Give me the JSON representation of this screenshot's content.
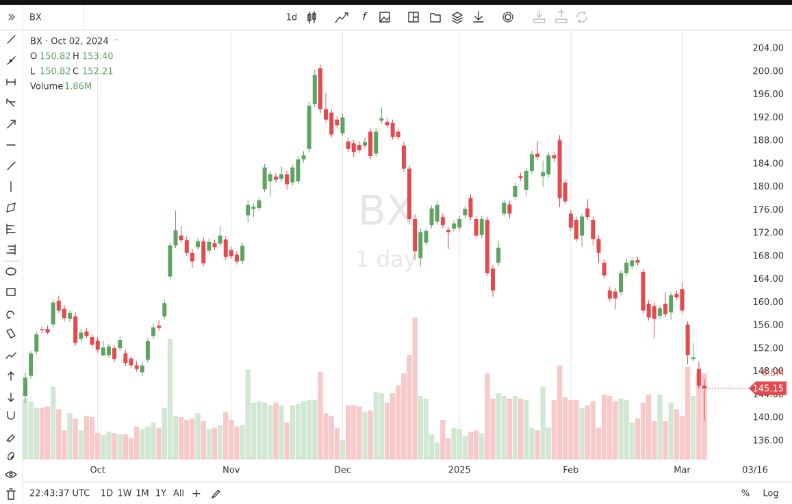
{
  "toolbar": {
    "symbol": "BX",
    "interval": "1d"
  },
  "bottom_bar": {
    "time": "22:43:37 UTC",
    "ranges": [
      "1D",
      "1W",
      "1M",
      "1Y",
      "All"
    ],
    "add": "+",
    "percent": "%",
    "log": "Log"
  },
  "cursor_date_label": "03/16",
  "legend": {
    "symbol": "BX · Oct 02, 2024",
    "o_label": "O",
    "o": "150.82",
    "h_label": "H",
    "h": "153.40",
    "l_label": "L",
    "l": "150.82",
    "c_label": "C",
    "c": "152.21",
    "volume_label": "Volume",
    "volume": "1.86M"
  },
  "watermark": {
    "symbol": "BX",
    "interval": "1 day"
  },
  "chart_data": {
    "type": "candlestick",
    "up_color": "#5ea362",
    "down_color": "#e5484d",
    "volume_up_color": "#d2e7d3",
    "volume_down_color": "#f8c9c9",
    "grid": {
      "x": true,
      "y": false
    },
    "ylim": [
      132.8,
      207.2
    ],
    "y2lim": [
      0,
      32.4
    ],
    "yticks": [
      {
        "value": 136,
        "label": "136.00"
      },
      {
        "value": 140,
        "label": "140.00"
      },
      {
        "value": 144,
        "label": "144.00"
      },
      {
        "value": 148,
        "label": "148.00"
      },
      {
        "value": 152,
        "label": "152.00"
      },
      {
        "value": 156,
        "label": "156.00"
      },
      {
        "value": 160,
        "label": "160.00"
      },
      {
        "value": 164,
        "label": "164.00"
      },
      {
        "value": 168,
        "label": "168.00"
      },
      {
        "value": 172,
        "label": "172.00"
      },
      {
        "value": 176,
        "label": "176.00"
      },
      {
        "value": 180,
        "label": "180.00"
      },
      {
        "value": 184,
        "label": "184.00"
      },
      {
        "value": 188,
        "label": "188.00"
      },
      {
        "value": 192,
        "label": "192.00"
      },
      {
        "value": 196,
        "label": "196.00"
      },
      {
        "value": 200,
        "label": "200.00"
      },
      {
        "value": 204,
        "label": "204.00"
      }
    ],
    "categories": [
      null,
      null,
      null,
      null,
      null,
      null,
      null,
      null,
      null,
      null,
      null,
      null,
      null,
      "Oct",
      null,
      null,
      null,
      null,
      null,
      null,
      null,
      null,
      null,
      null,
      null,
      null,
      null,
      null,
      null,
      null,
      null,
      null,
      null,
      null,
      null,
      null,
      null,
      "Nov",
      null,
      null,
      null,
      null,
      null,
      null,
      null,
      null,
      null,
      null,
      null,
      null,
      null,
      null,
      null,
      null,
      null,
      null,
      null,
      "Dec",
      null,
      null,
      null,
      null,
      null,
      null,
      null,
      null,
      null,
      null,
      null,
      null,
      null,
      null,
      null,
      null,
      null,
      null,
      null,
      null,
      "2025",
      null,
      null,
      null,
      null,
      null,
      null,
      null,
      null,
      null,
      null,
      null,
      null,
      null,
      null,
      null,
      null,
      null,
      null,
      null,
      "Feb",
      null,
      null,
      null,
      null,
      null,
      null,
      null,
      null,
      null,
      null,
      null,
      null,
      null,
      null,
      null,
      null,
      null,
      null,
      null,
      "Mar",
      null,
      null,
      null,
      null
    ],
    "annotations": {
      "volume_last": "6.5M"
    },
    "series": [
      {
        "name": "BX",
        "values": [
          [
            143.8,
            147.9,
            142.5,
            147.0
          ],
          [
            147.3,
            151.6,
            146.8,
            151.2
          ],
          [
            151.5,
            155.0,
            151.0,
            154.5
          ],
          [
            155.4,
            155.9,
            154.6,
            155.2
          ],
          [
            155.4,
            156.0,
            154.5,
            154.8
          ],
          [
            156.2,
            160.6,
            155.7,
            160.0
          ],
          [
            160.3,
            161.2,
            158.2,
            158.6
          ],
          [
            158.9,
            159.6,
            156.8,
            157.3
          ],
          [
            157.2,
            158.7,
            156.6,
            158.2
          ],
          [
            157.6,
            158.3,
            152.5,
            153.0
          ],
          [
            153.7,
            155.4,
            153.2,
            154.8
          ],
          [
            155.0,
            155.6,
            153.8,
            154.2
          ],
          [
            154.0,
            154.5,
            152.2,
            152.7
          ],
          [
            153.4,
            154.0,
            151.3,
            151.8
          ],
          [
            150.82,
            153.4,
            150.82,
            152.21
          ],
          [
            150.9,
            152.9,
            150.4,
            152.4
          ],
          [
            152.1,
            152.6,
            149.7,
            150.2
          ],
          [
            152.1,
            154.1,
            151.6,
            153.5
          ],
          [
            151.2,
            151.8,
            149.0,
            149.5
          ],
          [
            150.3,
            150.8,
            148.6,
            149.1
          ],
          [
            149.1,
            149.9,
            148.0,
            148.5
          ],
          [
            147.9,
            149.7,
            147.2,
            149.1
          ],
          [
            150.1,
            153.8,
            149.6,
            153.3
          ],
          [
            154.2,
            156.3,
            153.7,
            155.7
          ],
          [
            156.0,
            156.9,
            155.1,
            155.6
          ],
          [
            157.6,
            160.5,
            157.1,
            159.9
          ],
          [
            164.5,
            170.4,
            164.0,
            169.9
          ],
          [
            169.9,
            175.9,
            169.4,
            172.5
          ],
          [
            171.6,
            173.2,
            170.3,
            170.8
          ],
          [
            170.8,
            171.5,
            168.1,
            168.6
          ],
          [
            168.6,
            169.3,
            166.0,
            167.1
          ],
          [
            169.6,
            171.2,
            169.1,
            170.6
          ],
          [
            170.6,
            171.3,
            166.3,
            166.8
          ],
          [
            169.0,
            171.1,
            168.5,
            170.5
          ],
          [
            170.3,
            170.9,
            169.1,
            169.6
          ],
          [
            170.2,
            173.2,
            169.7,
            171.6
          ],
          [
            170.9,
            171.5,
            167.4,
            167.9
          ],
          [
            169.1,
            169.7,
            167.5,
            168.0
          ],
          [
            168.3,
            168.9,
            166.6,
            167.1
          ],
          [
            167.2,
            170.4,
            166.7,
            169.8
          ],
          [
            175.1,
            177.8,
            173.9,
            176.9
          ],
          [
            176.2,
            177.2,
            174.8,
            176.6
          ],
          [
            176.4,
            178.3,
            175.9,
            177.7
          ],
          [
            179.6,
            184.0,
            179.1,
            183.4
          ],
          [
            181.0,
            182.8,
            178.3,
            182.2
          ],
          [
            181.8,
            182.4,
            180.8,
            181.3
          ],
          [
            181.4,
            183.6,
            180.9,
            182.2
          ],
          [
            182.2,
            182.8,
            179.5,
            180.5
          ],
          [
            180.8,
            183.9,
            180.3,
            183.4
          ],
          [
            181.0,
            185.4,
            180.5,
            184.8
          ],
          [
            184.8,
            186.2,
            184.3,
            185.5
          ],
          [
            186.6,
            194.8,
            186.1,
            194.1
          ],
          [
            194.4,
            200.4,
            193.9,
            199.4
          ],
          [
            200.6,
            201.2,
            192.8,
            193.5
          ],
          [
            193.5,
            196.3,
            191.2,
            191.7
          ],
          [
            192.9,
            193.5,
            188.6,
            189.1
          ],
          [
            191.7,
            192.3,
            190.2,
            190.7
          ],
          [
            189.3,
            192.7,
            188.8,
            192.1
          ],
          [
            187.9,
            188.5,
            186.1,
            186.6
          ],
          [
            187.6,
            188.2,
            185.2,
            186.1
          ],
          [
            187.3,
            187.9,
            185.9,
            186.4
          ],
          [
            187.2,
            188.6,
            186.7,
            187.8
          ],
          [
            189.6,
            190.2,
            184.8,
            185.4
          ],
          [
            185.8,
            190.2,
            185.3,
            189.6
          ],
          [
            191.5,
            193.8,
            191.0,
            191.9
          ],
          [
            191.3,
            191.9,
            190.2,
            190.7
          ],
          [
            191.1,
            191.7,
            188.2,
            188.7
          ],
          [
            189.6,
            190.2,
            188.2,
            188.7
          ],
          [
            187.2,
            187.9,
            182.7,
            183.2
          ],
          [
            183.2,
            183.8,
            174.0,
            174.5
          ],
          [
            174.5,
            175.3,
            167.4,
            168.9
          ],
          [
            167.7,
            172.8,
            166.3,
            172.2
          ],
          [
            170.4,
            172.9,
            169.9,
            172.4
          ],
          [
            173.4,
            176.8,
            172.9,
            176.3
          ],
          [
            174.0,
            177.5,
            173.5,
            176.9
          ],
          [
            174.8,
            175.4,
            172.9,
            173.4
          ],
          [
            172.6,
            173.1,
            169.3,
            172.2
          ],
          [
            172.8,
            174.2,
            172.3,
            173.7
          ],
          [
            173.0,
            175.0,
            172.5,
            174.5
          ],
          [
            175.1,
            176.7,
            174.6,
            176.2
          ],
          [
            178.1,
            178.8,
            174.3,
            174.8
          ],
          [
            174.5,
            175.1,
            171.1,
            171.6
          ],
          [
            171.7,
            175.0,
            171.2,
            174.5
          ],
          [
            174.3,
            174.9,
            164.6,
            165.1
          ],
          [
            165.9,
            166.5,
            161.0,
            162.1
          ],
          [
            166.9,
            170.6,
            166.4,
            169.5
          ],
          [
            175.4,
            177.8,
            174.9,
            177.3
          ],
          [
            177.0,
            177.6,
            174.6,
            175.4
          ],
          [
            178.3,
            180.8,
            177.8,
            180.2
          ],
          [
            181.9,
            182.5,
            181.1,
            181.6
          ],
          [
            179.5,
            183.3,
            178.5,
            182.8
          ],
          [
            182.8,
            186.3,
            182.3,
            185.7
          ],
          [
            185.8,
            188.0,
            184.7,
            185.2
          ],
          [
            181.9,
            184.6,
            180.1,
            182.6
          ],
          [
            182.2,
            186.0,
            181.7,
            185.5
          ],
          [
            185.5,
            186.1,
            184.4,
            185.0
          ],
          [
            188.1,
            189.0,
            176.5,
            178.1
          ],
          [
            180.8,
            181.4,
            177.0,
            177.5
          ],
          [
            175.4,
            176.0,
            172.5,
            173.0
          ],
          [
            174.3,
            174.9,
            170.5,
            171.0
          ],
          [
            171.6,
            175.4,
            169.6,
            174.9
          ],
          [
            176.3,
            177.9,
            174.3,
            174.8
          ],
          [
            174.3,
            174.9,
            169.8,
            171.0
          ],
          [
            171.0,
            171.6,
            166.9,
            168.6
          ],
          [
            166.9,
            167.5,
            164.2,
            164.7
          ],
          [
            162.1,
            162.7,
            160.2,
            160.7
          ],
          [
            161.9,
            162.5,
            158.8,
            160.7
          ],
          [
            161.8,
            165.6,
            161.3,
            165.1
          ],
          [
            165.1,
            167.6,
            164.6,
            166.9
          ],
          [
            166.3,
            167.9,
            165.8,
            167.3
          ],
          [
            167.4,
            167.9,
            166.4,
            166.9
          ],
          [
            165.3,
            165.9,
            158.1,
            158.6
          ],
          [
            159.8,
            160.4,
            156.9,
            157.4
          ],
          [
            159.4,
            160.0,
            153.8,
            157.2
          ],
          [
            157.7,
            159.5,
            157.2,
            159.0
          ],
          [
            159.8,
            161.8,
            157.5,
            158.0
          ],
          [
            158.3,
            161.8,
            157.0,
            161.3
          ],
          [
            161.5,
            162.1,
            160.4,
            160.9
          ],
          [
            162.3,
            163.6,
            158.1,
            158.6
          ],
          [
            156.2,
            156.8,
            149.3,
            150.9
          ],
          [
            150.2,
            153.0,
            149.7,
            150.5
          ],
          [
            148.5,
            149.7,
            145.1,
            145.6
          ],
          [
            145.6,
            146.8,
            139.5,
            145.15
          ]
        ]
      },
      {
        "name": "Volume",
        "axis": "y2",
        "values": [
          4.6,
          4.4,
          3.9,
          3.9,
          4.0,
          5.5,
          3.8,
          2.2,
          3.5,
          3.1,
          2.2,
          3.3,
          3.2,
          2.0,
          1.86,
          2.1,
          2.0,
          1.9,
          1.9,
          1.6,
          2.5,
          2.3,
          2.5,
          2.8,
          2.4,
          3.9,
          9.1,
          3.3,
          3.2,
          3.0,
          3.1,
          3.5,
          2.9,
          2.3,
          2.4,
          2.6,
          3.6,
          3.0,
          2.5,
          2.6,
          6.8,
          4.3,
          4.4,
          4.3,
          4.1,
          4.3,
          4.1,
          2.8,
          4.1,
          4.2,
          4.4,
          4.5,
          4.5,
          6.6,
          3.5,
          3.3,
          2.4,
          1.5,
          4.1,
          4.1,
          4.0,
          3.6,
          3.7,
          5.1,
          5.0,
          4.3,
          5.0,
          5.6,
          6.5,
          7.9,
          10.7,
          4.8,
          4.6,
          1.9,
          1.3,
          3.0,
          1.6,
          2.4,
          2.3,
          1.8,
          2.1,
          2.2,
          2.0,
          6.5,
          4.6,
          5.0,
          4.8,
          4.6,
          4.8,
          4.6,
          4.5,
          2.4,
          2.2,
          5.5,
          2.4,
          4.5,
          7.1,
          4.7,
          4.5,
          4.5,
          3.9,
          4.1,
          4.4,
          2.4,
          4.9,
          4.8,
          4.4,
          4.6,
          4.5,
          2.8,
          3.1,
          4.3,
          4.9,
          2.9,
          4.9,
          2.9,
          4.3,
          3.8,
          3.3,
          7.0,
          4.8,
          6.5,
          6.5
        ]
      }
    ]
  }
}
